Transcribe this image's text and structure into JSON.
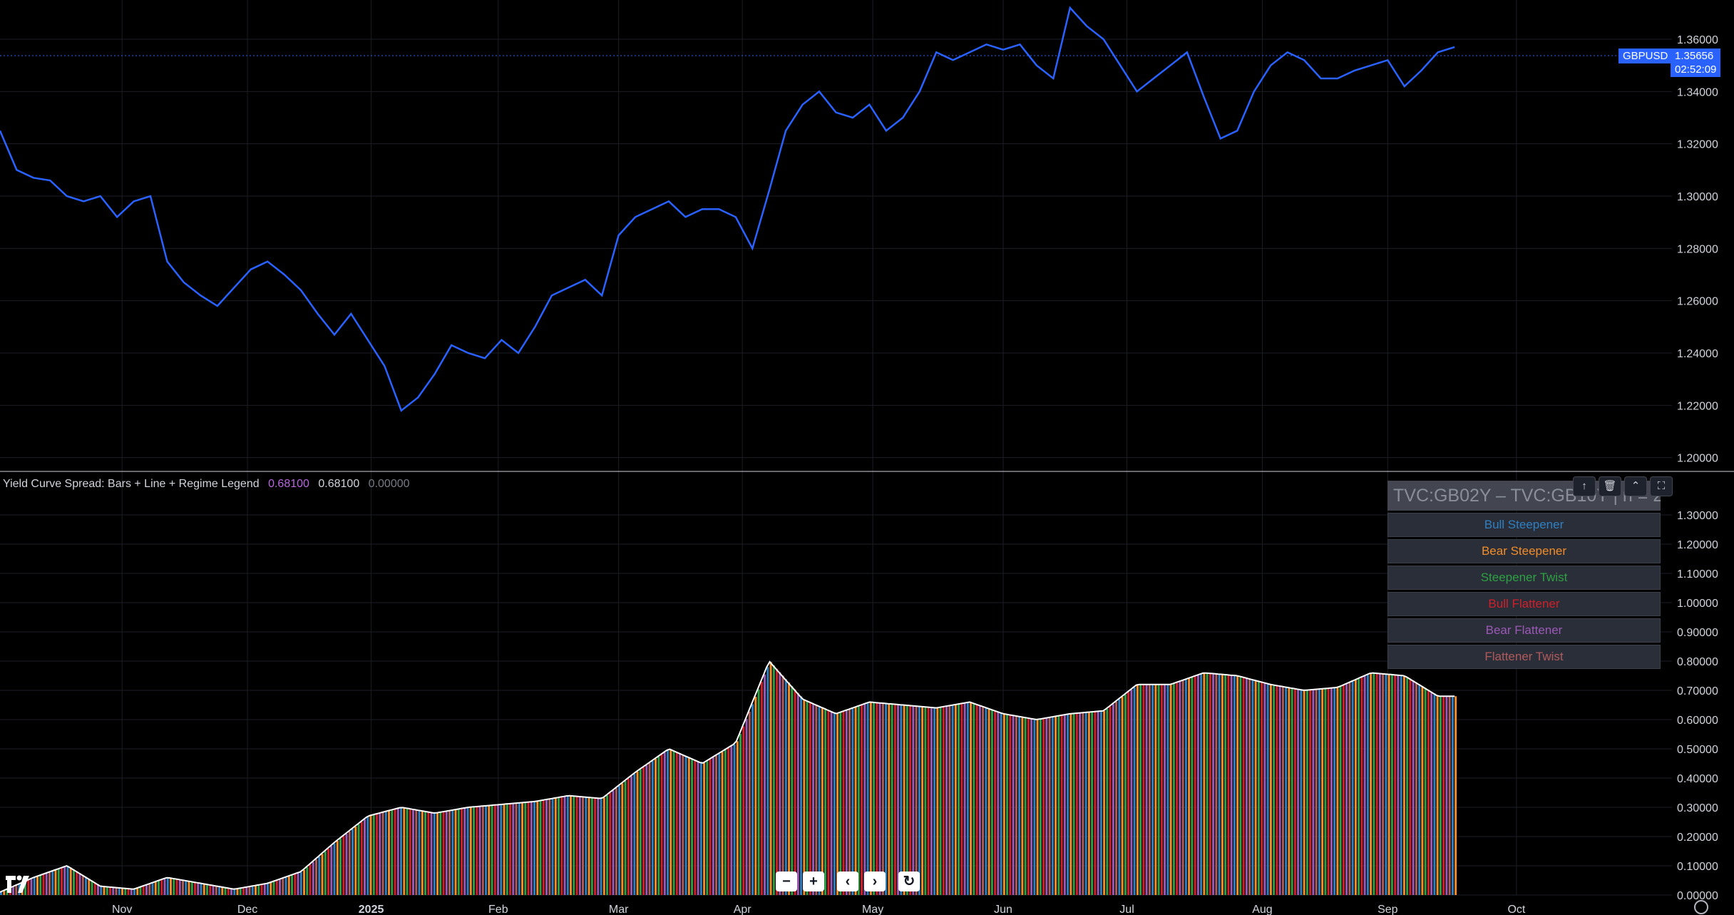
{
  "chart_data": [
    {
      "type": "line",
      "symbol": "GBPUSD",
      "last_price": "1.35656",
      "countdown": "02:52:09",
      "color": "#2962ff",
      "y_ticks": [
        "1.36000",
        "1.34000",
        "1.32000",
        "1.30000",
        "1.28000",
        "1.26000",
        "1.24000",
        "1.22000",
        "1.20000"
      ],
      "ylim": [
        1.195,
        1.375
      ],
      "x_range": [
        0,
        1
      ],
      "x": [
        0.0,
        0.01,
        0.02,
        0.03,
        0.04,
        0.05,
        0.06,
        0.07,
        0.08,
        0.09,
        0.1,
        0.11,
        0.12,
        0.13,
        0.14,
        0.15,
        0.16,
        0.17,
        0.18,
        0.19,
        0.2,
        0.21,
        0.22,
        0.23,
        0.24,
        0.25,
        0.26,
        0.27,
        0.28,
        0.29,
        0.3,
        0.31,
        0.32,
        0.33,
        0.34,
        0.35,
        0.36,
        0.37,
        0.38,
        0.39,
        0.4,
        0.41,
        0.42,
        0.43,
        0.44,
        0.45,
        0.46,
        0.47,
        0.48,
        0.49,
        0.5,
        0.51,
        0.52,
        0.53,
        0.54,
        0.55,
        0.56,
        0.57,
        0.58,
        0.59,
        0.6,
        0.61,
        0.62,
        0.63,
        0.64,
        0.65,
        0.66,
        0.67,
        0.68,
        0.69,
        0.7,
        0.71,
        0.72,
        0.73,
        0.74,
        0.75,
        0.76,
        0.77,
        0.78,
        0.79,
        0.8,
        0.81,
        0.82,
        0.83,
        0.84,
        0.85,
        0.86,
        0.87
      ],
      "values": [
        1.325,
        1.31,
        1.307,
        1.306,
        1.3,
        1.298,
        1.3,
        1.292,
        1.298,
        1.3,
        1.275,
        1.267,
        1.262,
        1.258,
        1.265,
        1.272,
        1.275,
        1.27,
        1.264,
        1.255,
        1.247,
        1.255,
        1.245,
        1.235,
        1.218,
        1.223,
        1.232,
        1.243,
        1.24,
        1.238,
        1.245,
        1.24,
        1.25,
        1.262,
        1.265,
        1.268,
        1.262,
        1.285,
        1.292,
        1.295,
        1.298,
        1.292,
        1.295,
        1.295,
        1.292,
        1.28,
        1.302,
        1.325,
        1.335,
        1.34,
        1.332,
        1.33,
        1.335,
        1.325,
        1.33,
        1.34,
        1.355,
        1.352,
        1.355,
        1.358,
        1.356,
        1.358,
        1.35,
        1.345,
        1.372,
        1.365,
        1.36,
        1.35,
        1.34,
        1.345,
        1.35,
        1.355,
        1.338,
        1.322,
        1.325,
        1.34,
        1.35,
        1.355,
        1.352,
        1.345,
        1.345,
        1.348,
        1.35,
        1.352,
        1.342,
        1.348,
        1.355,
        1.357
      ]
    },
    {
      "type": "bar",
      "title": "Yield Curve Spread: Bars + Line + Regime Legend",
      "readouts": [
        "0.68100",
        "0.68100",
        "0.00000"
      ],
      "readout_colors": [
        "#b967e0",
        "#d1d4dc",
        "#787b86"
      ],
      "y_ticks": [
        "1.30000",
        "1.20000",
        "1.10000",
        "1.00000",
        "0.90000",
        "0.80000",
        "0.70000",
        "0.60000",
        "0.50000",
        "0.40000",
        "0.30000",
        "0.20000",
        "0.10000",
        "0.00000"
      ],
      "ylim": [
        0,
        1.3
      ],
      "x_range": [
        0,
        1
      ],
      "x": [
        0.0,
        0.02,
        0.04,
        0.06,
        0.08,
        0.1,
        0.12,
        0.14,
        0.16,
        0.18,
        0.2,
        0.22,
        0.24,
        0.26,
        0.28,
        0.3,
        0.32,
        0.34,
        0.36,
        0.38,
        0.4,
        0.42,
        0.44,
        0.46,
        0.48,
        0.5,
        0.52,
        0.54,
        0.56,
        0.58,
        0.6,
        0.62,
        0.64,
        0.66,
        0.68,
        0.7,
        0.72,
        0.74,
        0.76,
        0.78,
        0.8,
        0.82,
        0.84,
        0.86,
        0.87
      ],
      "values": [
        0.01,
        0.06,
        0.1,
        0.03,
        0.02,
        0.06,
        0.04,
        0.02,
        0.04,
        0.08,
        0.18,
        0.27,
        0.3,
        0.28,
        0.3,
        0.31,
        0.32,
        0.34,
        0.33,
        0.42,
        0.5,
        0.45,
        0.52,
        0.8,
        0.67,
        0.62,
        0.66,
        0.65,
        0.64,
        0.66,
        0.62,
        0.6,
        0.62,
        0.63,
        0.72,
        0.72,
        0.76,
        0.75,
        0.72,
        0.7,
        0.71,
        0.76,
        0.75,
        0.68,
        0.68
      ],
      "regime_colors": [
        "#2f80c1",
        "#f28c28",
        "#2ea043",
        "#d0202a",
        "#9b59b6",
        "#b05b5b"
      ],
      "legend": {
        "header": "TVC:GB02Y – TVC:GB10Y | n = 20",
        "items": [
          {
            "label": "Bull Steepener",
            "color": "#2f80c1"
          },
          {
            "label": "Bear Steepener",
            "color": "#f28c28"
          },
          {
            "label": "Steepener Twist",
            "color": "#2ea043"
          },
          {
            "label": "Bull Flattener",
            "color": "#d0202a"
          },
          {
            "label": "Bear Flattener",
            "color": "#9b59b6"
          },
          {
            "label": "Flattener Twist",
            "color": "#b05b5b"
          }
        ]
      }
    }
  ],
  "time_axis": [
    "Nov",
    "Dec",
    "2025",
    "Feb",
    "Mar",
    "Apr",
    "May",
    "Jun",
    "Jul",
    "Aug",
    "Sep",
    "Oct"
  ],
  "time_axis_positions": [
    0.073,
    0.148,
    0.222,
    0.298,
    0.37,
    0.444,
    0.522,
    0.6,
    0.674,
    0.755,
    0.83,
    0.907
  ],
  "nav_buttons": {
    "zoom_out": "−",
    "zoom_in": "+",
    "left": "‹",
    "right": "›",
    "reset": "↻"
  },
  "pane_buttons": [
    "↑",
    "🗑",
    "⌃",
    "⛶"
  ]
}
